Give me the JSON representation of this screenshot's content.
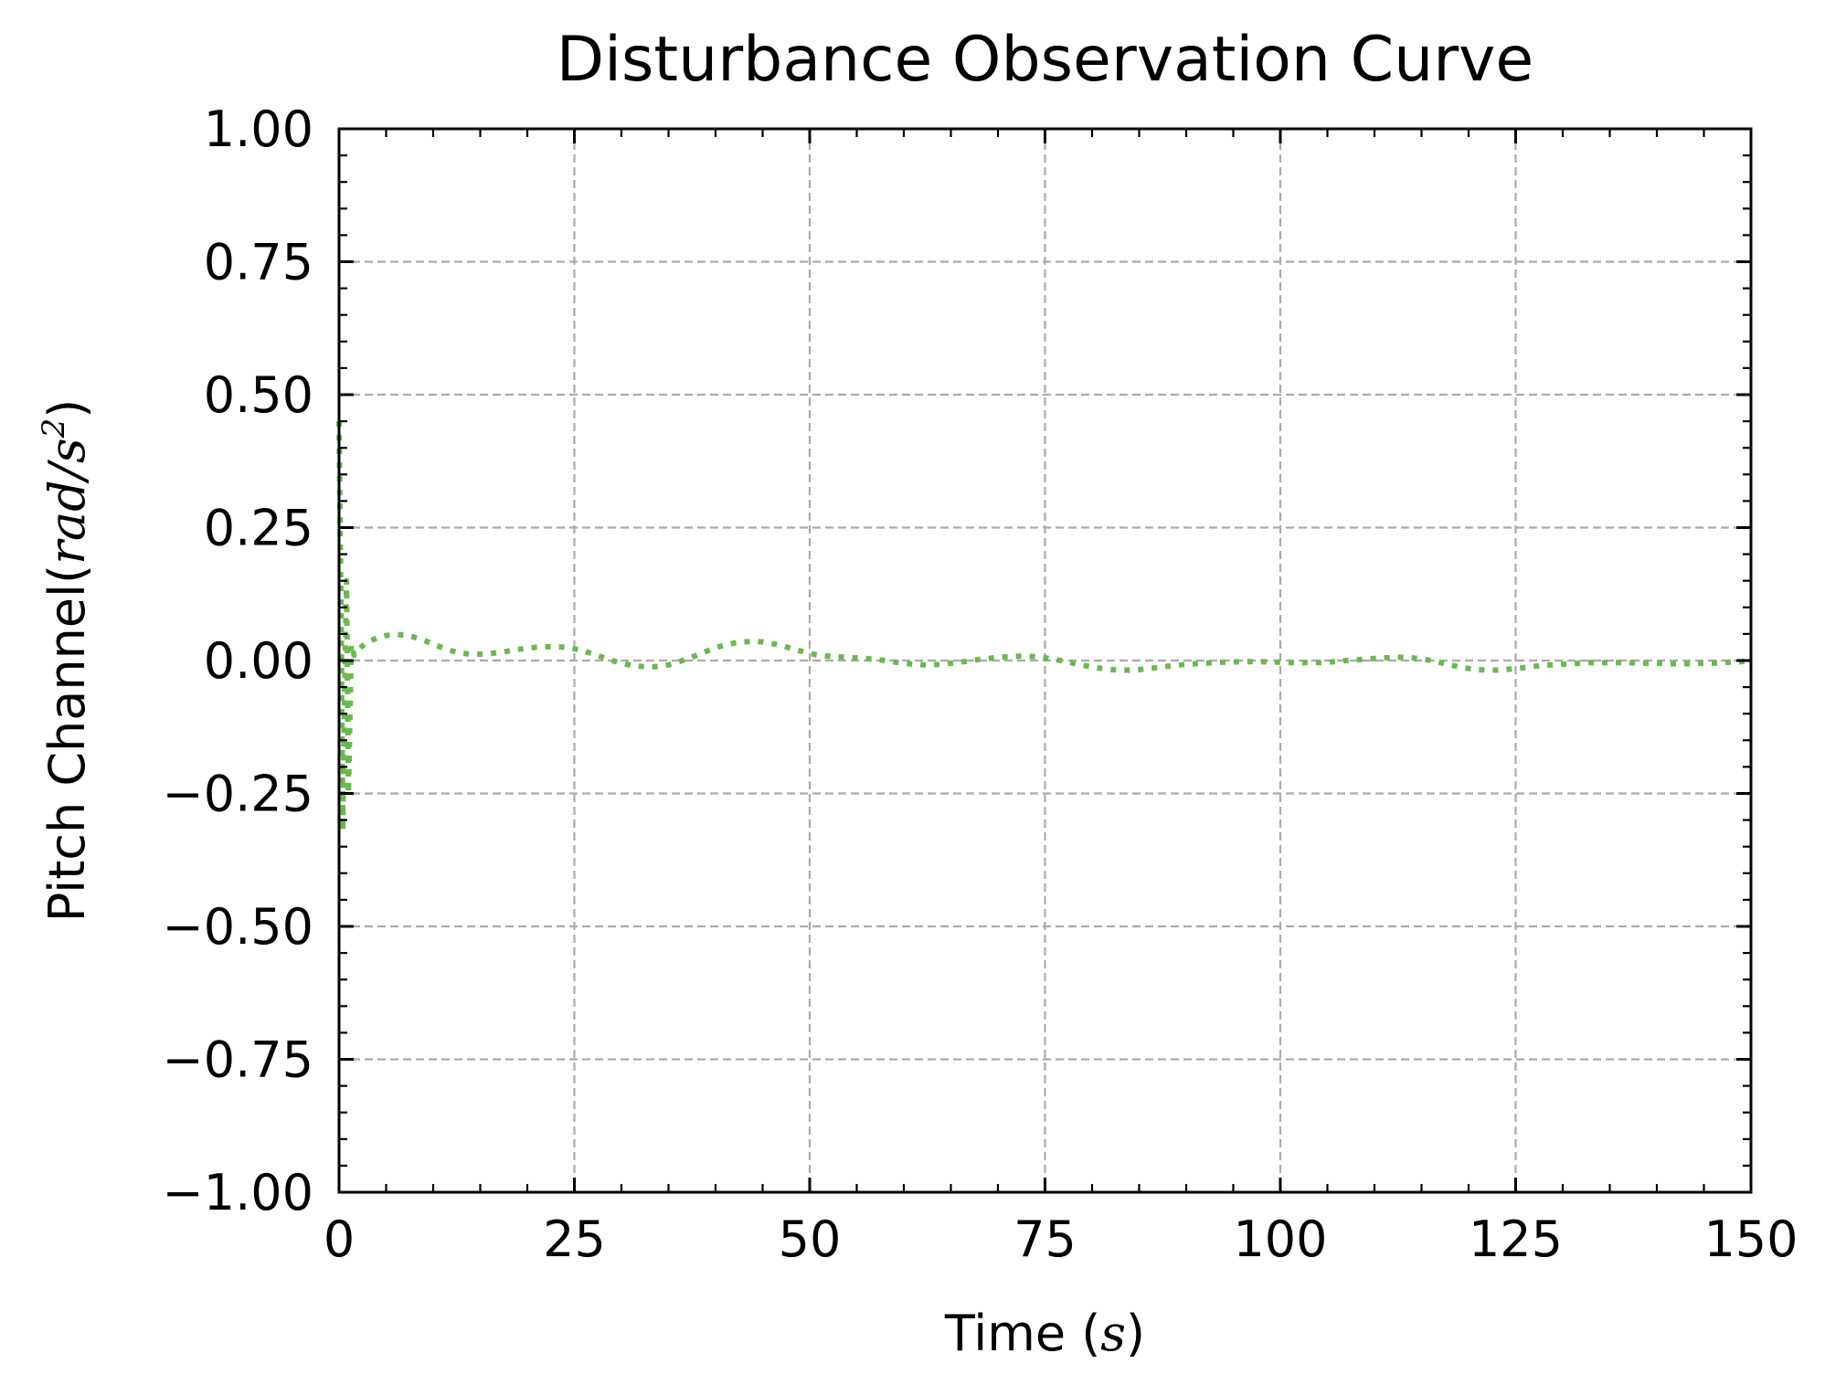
{
  "chart_data": {
    "type": "line",
    "title": "Disturbance Observation Curve",
    "xlabel": {
      "prefix": "Time (",
      "math": "s",
      "suffix": ")"
    },
    "ylabel": {
      "prefix": "Pitch Channel(",
      "math": "rad/s",
      "sup": "2",
      "suffix": ")"
    },
    "xlim": [
      0,
      150
    ],
    "ylim": [
      -1.0,
      1.0
    ],
    "xticks": [
      0,
      25,
      50,
      75,
      100,
      125,
      150
    ],
    "xtick_labels": [
      "0",
      "25",
      "50",
      "75",
      "100",
      "125",
      "150"
    ],
    "yticks": [
      1.0,
      0.75,
      0.5,
      0.25,
      0.0,
      -0.25,
      -0.5,
      -0.75,
      -1.0
    ],
    "ytick_labels": [
      "1.00",
      "0.75",
      "0.50",
      "0.25",
      "0.00",
      "−0.25",
      "−0.50",
      "−0.75",
      "−1.00"
    ],
    "grid": true,
    "legend": "none",
    "series": [
      {
        "color": "#6ab94f",
        "linestyle": "dotted",
        "x": [
          0,
          0.2,
          0.4,
          0.6,
          0.8,
          1.0,
          1.3,
          1.6,
          2.0,
          3,
          4,
          5,
          6,
          7,
          8,
          9,
          10,
          11,
          12,
          13,
          14,
          15,
          16,
          17,
          18,
          19,
          20,
          21,
          22,
          23,
          24,
          25,
          26,
          27,
          28,
          29,
          30,
          31,
          32,
          33,
          34,
          35,
          36,
          37,
          38,
          39,
          40,
          41,
          42,
          43,
          44,
          45,
          46,
          47,
          48,
          49,
          50,
          51,
          52,
          53,
          54,
          55,
          56,
          57,
          58,
          59,
          60,
          61,
          62,
          63,
          64,
          65,
          66,
          67,
          68,
          69,
          70,
          71,
          72,
          73,
          74,
          75,
          76,
          77,
          78,
          79,
          80,
          81,
          82,
          83,
          84,
          85,
          86,
          87,
          88,
          89,
          90,
          91,
          92,
          93,
          94,
          95,
          96,
          97,
          98,
          99,
          100,
          101,
          102,
          103,
          104,
          105,
          106,
          107,
          108,
          109,
          110,
          111,
          112,
          113,
          114,
          115,
          116,
          117,
          118,
          119,
          120,
          121,
          122,
          123,
          124,
          125,
          126,
          127,
          128,
          129,
          130,
          131,
          132,
          133,
          134,
          135,
          136,
          137,
          138,
          139,
          140,
          141,
          142,
          143,
          144,
          145,
          146,
          147,
          148,
          149,
          150
        ],
        "y": [
          0.45,
          0.1,
          -0.32,
          -0.05,
          0.15,
          -0.25,
          0.03,
          0.01,
          0.02,
          0.035,
          0.042,
          0.047,
          0.049,
          0.048,
          0.044,
          0.038,
          0.031,
          0.024,
          0.018,
          0.014,
          0.012,
          0.012,
          0.013,
          0.015,
          0.018,
          0.021,
          0.023,
          0.025,
          0.026,
          0.026,
          0.025,
          0.022,
          0.018,
          0.012,
          0.006,
          0.0,
          -0.005,
          -0.009,
          -0.011,
          -0.012,
          -0.011,
          -0.008,
          -0.003,
          0.003,
          0.01,
          0.017,
          0.024,
          0.029,
          0.033,
          0.035,
          0.036,
          0.035,
          0.032,
          0.028,
          0.023,
          0.018,
          0.013,
          0.01,
          0.008,
          0.007,
          0.006,
          0.005,
          0.004,
          0.002,
          0.0,
          -0.003,
          -0.005,
          -0.007,
          -0.008,
          -0.008,
          -0.007,
          -0.005,
          -0.003,
          -0.001,
          0.002,
          0.004,
          0.006,
          0.007,
          0.008,
          0.008,
          0.007,
          0.005,
          0.002,
          -0.001,
          -0.005,
          -0.009,
          -0.012,
          -0.015,
          -0.017,
          -0.018,
          -0.018,
          -0.017,
          -0.015,
          -0.013,
          -0.011,
          -0.009,
          -0.007,
          -0.006,
          -0.005,
          -0.004,
          -0.003,
          -0.003,
          -0.002,
          -0.002,
          -0.002,
          -0.003,
          -0.003,
          -0.004,
          -0.004,
          -0.004,
          -0.004,
          -0.003,
          -0.002,
          0.0,
          0.001,
          0.003,
          0.004,
          0.005,
          0.006,
          0.006,
          0.005,
          0.003,
          0.0,
          -0.004,
          -0.008,
          -0.012,
          -0.015,
          -0.017,
          -0.018,
          -0.018,
          -0.017,
          -0.015,
          -0.013,
          -0.011,
          -0.009,
          -0.008,
          -0.007,
          -0.006,
          -0.005,
          -0.004,
          -0.004,
          -0.004,
          -0.004,
          -0.004,
          -0.005,
          -0.005,
          -0.005,
          -0.006,
          -0.006,
          -0.006,
          -0.006,
          -0.005,
          -0.005,
          -0.004,
          -0.003,
          -0.002,
          0.0
        ]
      }
    ]
  }
}
